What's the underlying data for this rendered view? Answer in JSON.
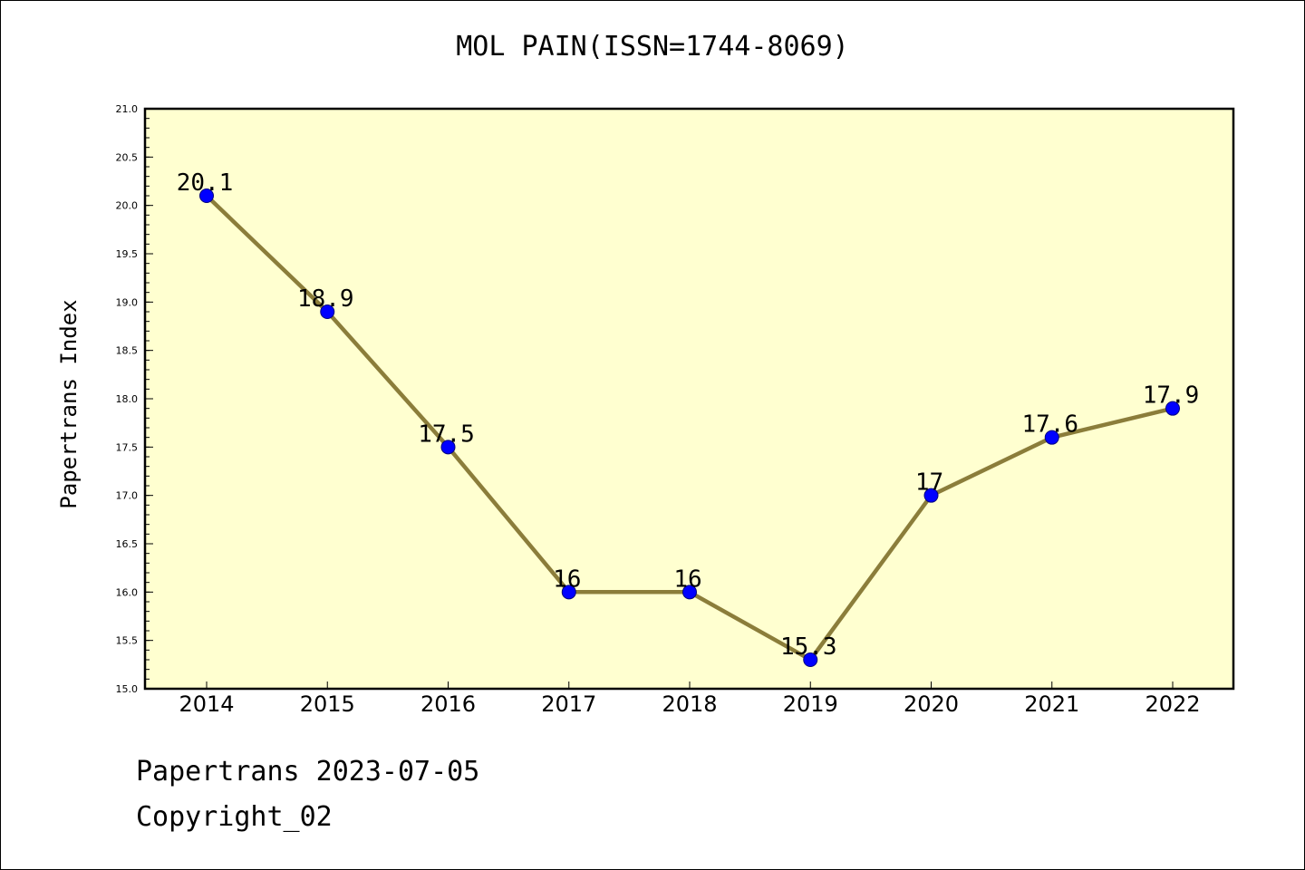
{
  "chart_data": {
    "type": "line",
    "title": "MOL PAIN(ISSN=1744-8069)",
    "xlabel": "",
    "ylabel": "Papertrans Index",
    "categories": [
      "2014",
      "2015",
      "2016",
      "2017",
      "2018",
      "2019",
      "2020",
      "2021",
      "2022"
    ],
    "series": [
      {
        "values": [
          20.1,
          18.9,
          17.5,
          16,
          16,
          15.3,
          17,
          17.6,
          17.9
        ],
        "labels": [
          "20.1",
          "18.9",
          "17.5",
          "16",
          "16",
          "15.3",
          "17",
          "17.6",
          "17.9"
        ]
      }
    ],
    "ylim": [
      15.0,
      21.0
    ],
    "yticks": [
      "15.0",
      "15.5",
      "16.0",
      "16.5",
      "17.0",
      "17.5",
      "18.0",
      "18.5",
      "19.0",
      "19.5",
      "20.0",
      "20.5",
      "21.0"
    ],
    "grid": false,
    "legend": "none",
    "colors": {
      "plot_background": "#ffffd0",
      "line": "#8b7d3a",
      "marker_fill": "#0000ff",
      "marker_edge": "#000080"
    }
  },
  "footer": {
    "line1": "Papertrans 2023-07-05",
    "line2": "Copyright_02"
  }
}
